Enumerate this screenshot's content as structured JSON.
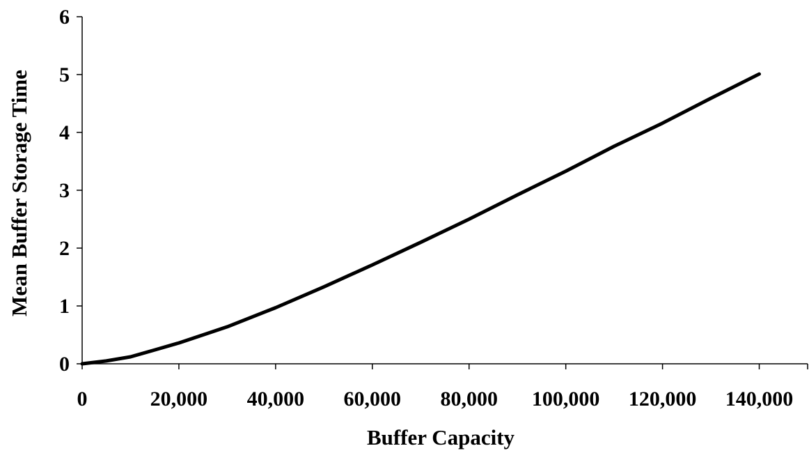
{
  "chart_data": {
    "type": "line",
    "title": "",
    "xlabel": "Buffer Capacity",
    "ylabel": "Mean Buffer Storage Time",
    "xlim": [
      0,
      150000
    ],
    "ylim": [
      0,
      6
    ],
    "x_ticks": [
      0,
      20000,
      40000,
      60000,
      80000,
      100000,
      120000,
      140000
    ],
    "x_tick_labels": [
      "0",
      "20,000",
      "40,000",
      "60,000",
      "80,000",
      "100,000",
      "120,000",
      "140,000"
    ],
    "y_ticks": [
      0,
      1,
      2,
      3,
      4,
      5,
      6
    ],
    "y_tick_labels": [
      "0",
      "1",
      "2",
      "3",
      "4",
      "5",
      "6"
    ],
    "grid": false,
    "legend": "none",
    "series": [
      {
        "color": "#000000",
        "x": [
          0,
          5000,
          10000,
          15000,
          20000,
          25000,
          30000,
          40000,
          50000,
          60000,
          70000,
          80000,
          90000,
          100000,
          110000,
          120000,
          130000,
          140000
        ],
        "y": [
          0,
          0.05,
          0.12,
          0.24,
          0.36,
          0.5,
          0.64,
          0.97,
          1.33,
          1.71,
          2.1,
          2.5,
          2.92,
          3.33,
          3.76,
          4.16,
          4.59,
          5.01
        ]
      }
    ]
  }
}
